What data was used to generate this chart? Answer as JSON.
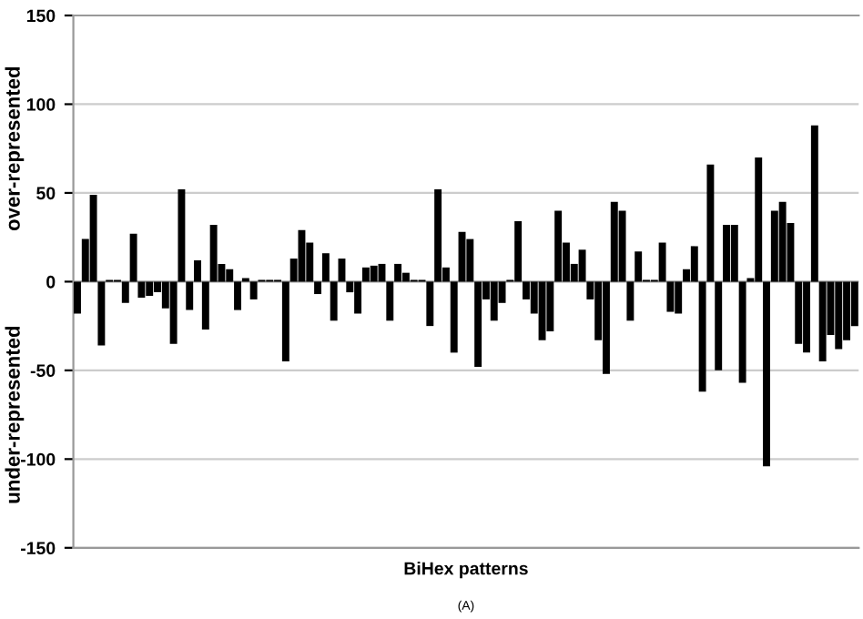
{
  "chart_data": {
    "type": "bar",
    "xlabel": "BiHex patterns",
    "ylabel": "over-represented",
    "annotations": [
      "under-represented",
      "(A)"
    ],
    "categories": [
      null,
      null,
      null,
      null,
      null,
      null,
      null,
      null,
      null,
      null,
      null,
      null,
      null,
      null,
      null,
      null,
      null,
      null,
      null,
      null,
      null,
      null,
      null,
      null,
      null,
      null,
      null,
      null,
      null,
      null,
      null,
      null,
      null,
      null,
      null,
      null,
      null,
      null,
      null,
      null,
      null,
      null,
      null,
      null,
      null,
      null,
      null,
      null,
      null,
      null,
      null,
      null,
      null,
      null,
      null,
      null,
      null,
      null,
      null,
      null,
      null,
      null,
      null,
      null,
      null,
      null,
      null,
      null,
      null,
      null,
      null,
      null,
      null,
      null,
      null,
      null,
      null,
      null,
      null,
      null,
      null,
      null,
      null,
      null,
      null,
      null,
      null,
      null,
      null,
      null,
      null,
      null,
      null,
      null,
      null,
      null,
      null,
      null
    ],
    "values": [
      -18,
      24,
      49,
      -36,
      1,
      1,
      -12,
      27,
      -9,
      -8,
      -6,
      -15,
      -35,
      52,
      -16,
      12,
      -27,
      32,
      10,
      7,
      -16,
      2,
      -10,
      1,
      1,
      1,
      -45,
      13,
      29,
      22,
      -7,
      16,
      -22,
      13,
      -6,
      -18,
      8,
      9,
      10,
      -22,
      10,
      5,
      1,
      1,
      -25,
      52,
      8,
      -40,
      28,
      24,
      -48,
      -10,
      -22,
      -12,
      1,
      34,
      -10,
      -18,
      -33,
      -28,
      40,
      22,
      10,
      18,
      -10,
      -33,
      -52,
      45,
      40,
      -22,
      17,
      1,
      1,
      22,
      -17,
      -18,
      7,
      20,
      -62,
      66,
      -50,
      32,
      32,
      -57,
      2,
      70,
      -104,
      40,
      45,
      33,
      -35,
      -40,
      88,
      -45,
      -30,
      -38,
      -33,
      -25
    ],
    "color": "#000000",
    "ylim": [
      -150,
      150
    ],
    "yticks": [
      -150,
      -100,
      -50,
      0,
      50,
      100,
      150
    ],
    "grid": "y",
    "legend": false
  }
}
